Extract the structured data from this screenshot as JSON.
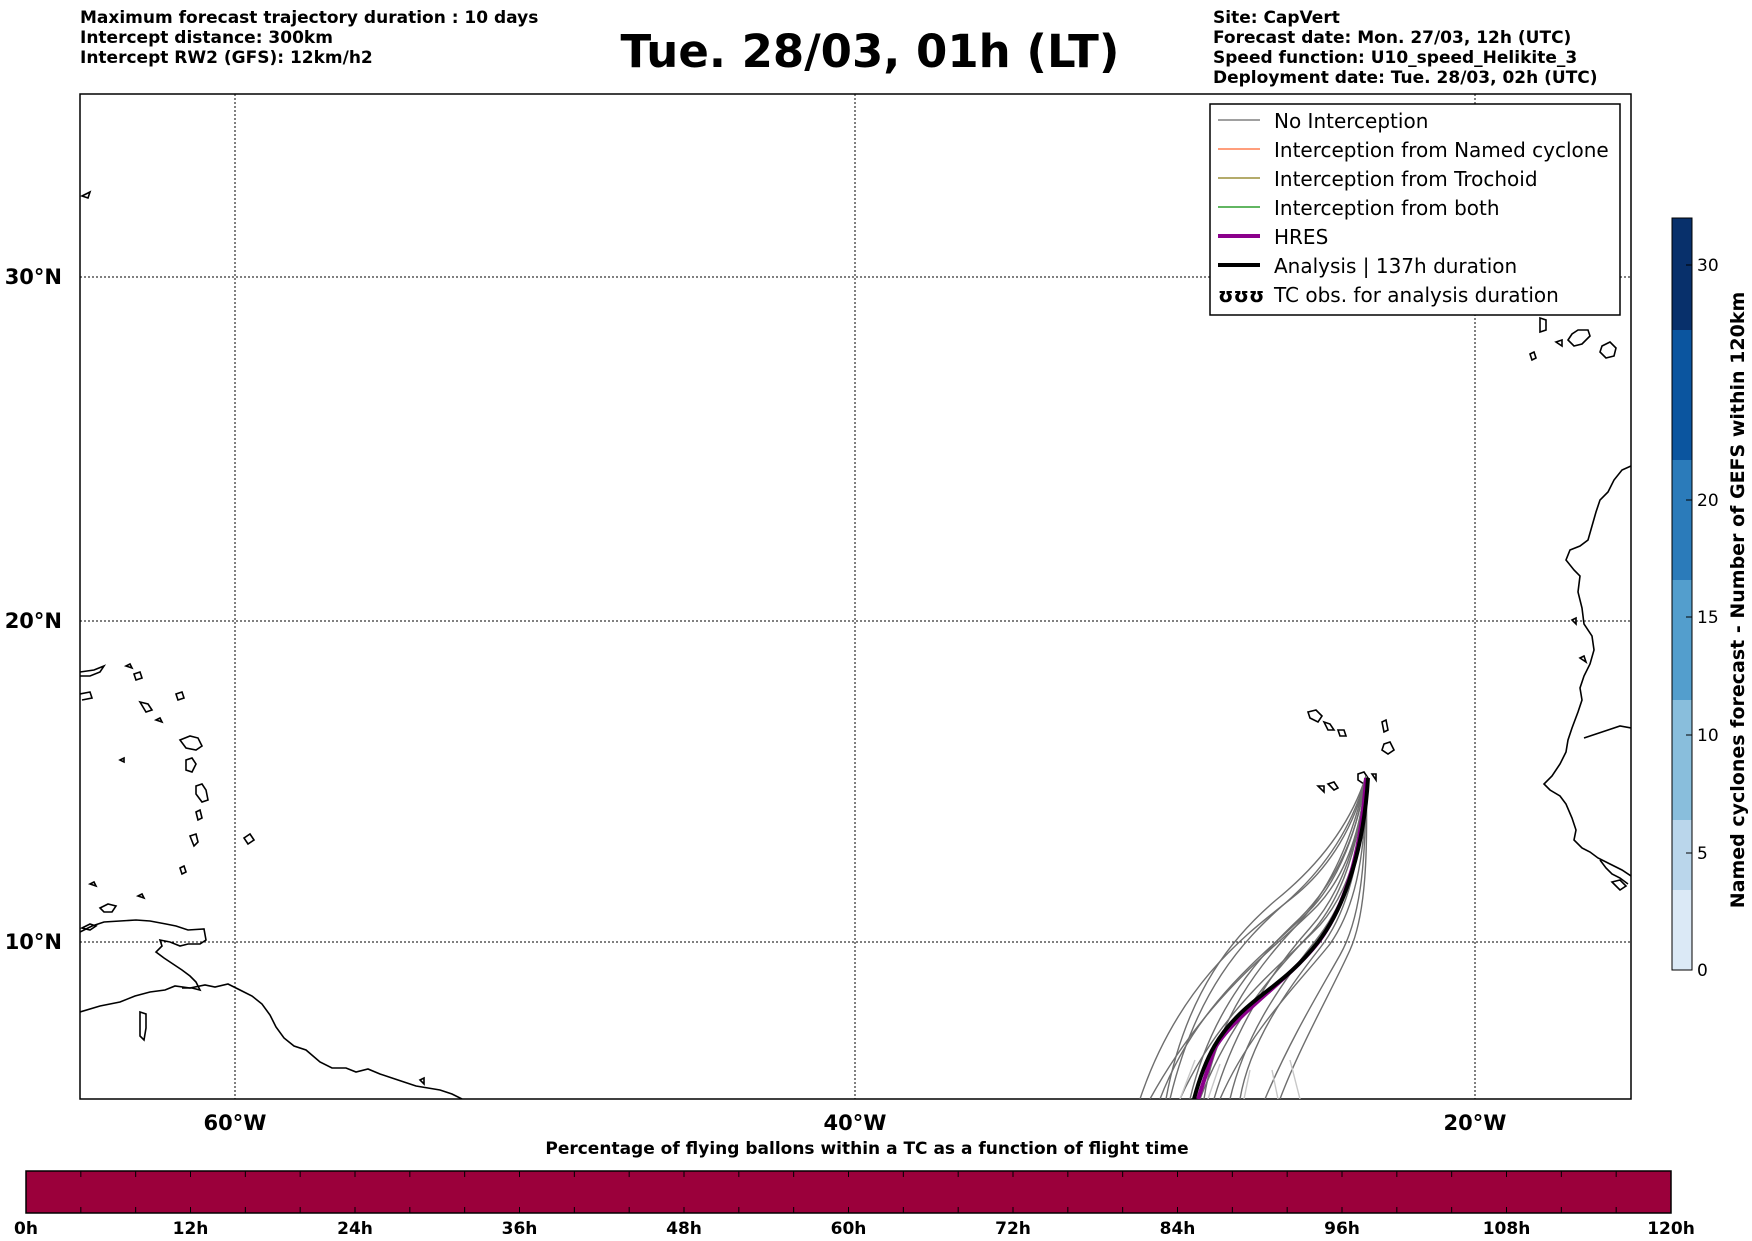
{
  "header_left": [
    "Maximum forecast trajectory duration : 10 days",
    "Intercept distance: 300km",
    "Intercept RW2 (GFS):  12km/h2"
  ],
  "title": "Tue. 28/03, 01h (LT)",
  "header_right": [
    "Site: CapVert",
    "Forecast date: Mon. 27/03, 12h (UTC)",
    "Speed function: U10_speed_Helikite_3",
    "Deployment date: Tue. 28/03, 02h (UTC)"
  ],
  "map": {
    "lon_range": [
      -65,
      -15
    ],
    "lat_range": [
      5.5,
      35
    ],
    "lat_ticks": [
      "30°N",
      "20°N",
      "10°N"
    ],
    "lon_ticks": [
      "60°W",
      "40°W",
      "20°W"
    ]
  },
  "legend": [
    {
      "label": "No Interception",
      "color": "#808080",
      "width": 1.5
    },
    {
      "label": "Interception from Named cyclone",
      "color": "#ff7f50",
      "width": 1.5
    },
    {
      "label": "Interception from Trochoid",
      "color": "#9b8f3a",
      "width": 1.5
    },
    {
      "label": "Interception from both",
      "color": "#2e9e2e",
      "width": 1.5
    },
    {
      "label": "HRES",
      "color": "#8b008b",
      "width": 4
    },
    {
      "label": "Analysis | 137h duration",
      "color": "#000000",
      "width": 4
    },
    {
      "label": "TC obs. for analysis duration",
      "symbol": "ʊʊʊ"
    }
  ],
  "colorbar_right": {
    "label": "Named cyclones forecast - Number of GEFS within 120km",
    "ticks": [
      "0",
      "5",
      "10",
      "15",
      "20",
      "30"
    ],
    "colors": [
      "#dbe9f6",
      "#bad6eb",
      "#89bedc",
      "#539ecd",
      "#2b7bba",
      "#0b559f",
      "#08306b"
    ]
  },
  "bottom_bar": {
    "title": "Percentage of flying ballons within a TC as a function of flight time",
    "ticks": [
      "0h",
      "12h",
      "24h",
      "36h",
      "48h",
      "60h",
      "72h",
      "84h",
      "96h",
      "108h",
      "120h"
    ],
    "color": "#9b003b"
  }
}
